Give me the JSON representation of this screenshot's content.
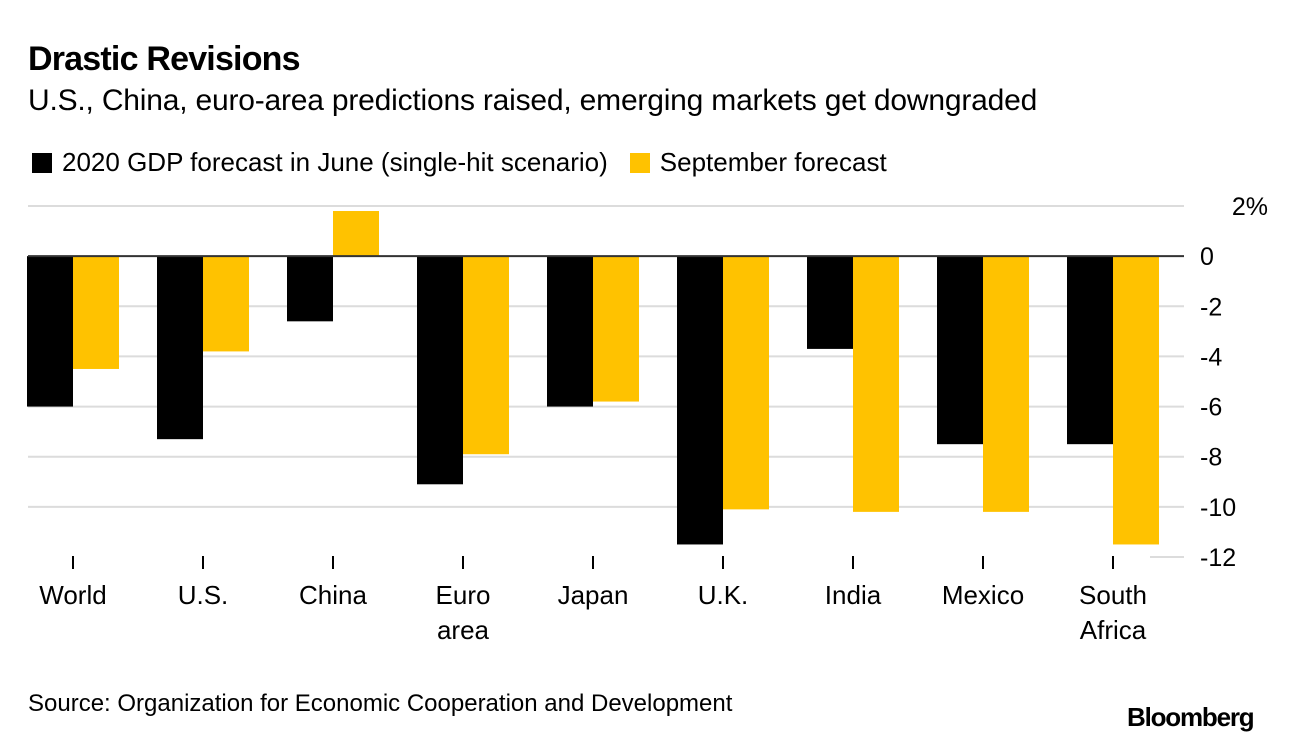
{
  "chart_data": {
    "type": "bar",
    "title": "Drastic Revisions",
    "subtitle": "U.S., China, euro-area predictions raised, emerging markets get downgraded",
    "categories": [
      [
        "World"
      ],
      [
        "U.S."
      ],
      [
        "China"
      ],
      [
        "Euro",
        "area"
      ],
      [
        "Japan"
      ],
      [
        "U.K."
      ],
      [
        "India"
      ],
      [
        "Mexico"
      ],
      [
        "South",
        "Africa"
      ]
    ],
    "series": [
      {
        "name": "2020 GDP forecast in June (single-hit scenario)",
        "color": "#000000",
        "values": [
          -6.0,
          -7.3,
          -2.6,
          -9.1,
          -6.0,
          -11.5,
          -3.7,
          -7.5,
          -7.5
        ]
      },
      {
        "name": "September forecast",
        "color": "#FFC200",
        "values": [
          -4.5,
          -3.8,
          1.8,
          -7.9,
          -5.8,
          -10.1,
          -10.2,
          -10.2,
          -11.5
        ]
      }
    ],
    "xlabel": "",
    "ylabel": "",
    "ylim": [
      -12,
      2
    ],
    "yticks": [
      2,
      0,
      -2,
      -4,
      -6,
      -8,
      -10,
      -12
    ],
    "ytick_labels": [
      "2%",
      "0",
      "-2",
      "-4",
      "-6",
      "-8",
      "-10",
      "-12"
    ],
    "y_axis_position": "right",
    "grid": true,
    "legend_position": "top-left"
  },
  "source": "Source: Organization for Economic Cooperation and Development",
  "brand": "Bloomberg"
}
